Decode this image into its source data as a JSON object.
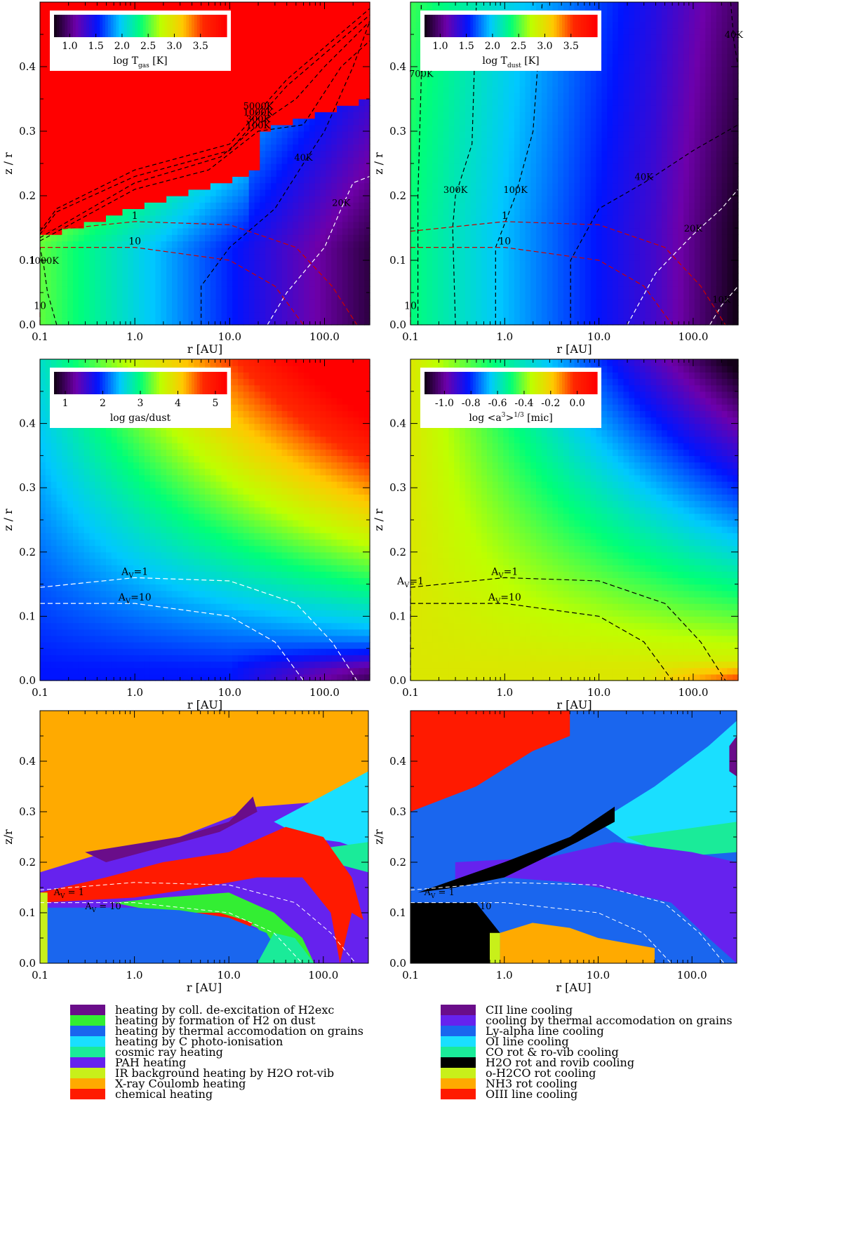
{
  "colors": {
    "hot": "#ff1a00",
    "contour_dark": "#000000",
    "contour_light": "#ffffff",
    "av_red": "#cc0000"
  },
  "chart_data": [
    {
      "type": "heatmap",
      "id": "tgas",
      "xlabel": "r [AU]",
      "ylabel": "z / r",
      "x_ticks": [
        "0.1",
        "1.0",
        "10.0",
        "100.0"
      ],
      "y_ticks": [
        "0.0",
        "0.1",
        "0.2",
        "0.3",
        "0.4"
      ],
      "xlim": [
        0.1,
        300
      ],
      "ylim": [
        0,
        0.5
      ],
      "x_scale": "log",
      "colorbar": {
        "ticks": [
          "1.0",
          "1.5",
          "2.0",
          "2.5",
          "3.0",
          "3.5"
        ],
        "label_main": "log T",
        "label_sub": "gas",
        "label_unit": " [K]",
        "range": [
          0.7,
          4.0
        ]
      },
      "temperature_contours": [
        {
          "label": "5000K",
          "level": "5000K",
          "points": [
            [
              0.1,
              0.145
            ],
            [
              0.15,
              0.18
            ],
            [
              1,
              0.24
            ],
            [
              10,
              0.28
            ],
            [
              20,
              0.33
            ],
            [
              40,
              0.38
            ],
            [
              100,
              0.43
            ],
            [
              300,
              0.49
            ]
          ]
        },
        {
          "label": "1000K",
          "level": "1000K",
          "points": [
            [
              0.1,
              0.14
            ],
            [
              0.15,
              0.175
            ],
            [
              1,
              0.23
            ],
            [
              10,
              0.27
            ],
            [
              20,
              0.32
            ],
            [
              40,
              0.37
            ],
            [
              100,
              0.42
            ],
            [
              300,
              0.48
            ]
          ]
        },
        {
          "label": "300K",
          "level": "300K",
          "points": [
            [
              0.1,
              0.135
            ],
            [
              1,
              0.22
            ],
            [
              8,
              0.26
            ],
            [
              20,
              0.31
            ],
            [
              50,
              0.35
            ],
            [
              100,
              0.4
            ],
            [
              300,
              0.47
            ]
          ]
        },
        {
          "label": "100K",
          "level": "100K",
          "points": [
            [
              0.1,
              0.13
            ],
            [
              1,
              0.21
            ],
            [
              6,
              0.24
            ],
            [
              20,
              0.3
            ],
            [
              60,
              0.31
            ],
            [
              150,
              0.4
            ],
            [
              300,
              0.44
            ]
          ]
        },
        {
          "label": "40K",
          "level": "40K",
          "points": [
            [
              5,
              0.0
            ],
            [
              5,
              0.06
            ],
            [
              10,
              0.12
            ],
            [
              30,
              0.18
            ],
            [
              60,
              0.25
            ],
            [
              100,
              0.3
            ],
            [
              200,
              0.4
            ],
            [
              300,
              0.47
            ]
          ]
        },
        {
          "label": "20K",
          "level": "20K",
          "points": [
            [
              25,
              0.0
            ],
            [
              40,
              0.05
            ],
            [
              100,
              0.12
            ],
            [
              150,
              0.18
            ],
            [
              200,
              0.22
            ],
            [
              300,
              0.23
            ]
          ]
        },
        {
          "label": "1000K",
          "level": "1000K",
          "points": [
            [
              0.15,
              0.0
            ],
            [
              0.12,
              0.05
            ],
            [
              0.11,
              0.09
            ],
            [
              0.1,
              0.12
            ]
          ]
        }
      ],
      "av_contours": [
        {
          "label": "1",
          "points": [
            [
              0.1,
              0.145
            ],
            [
              1,
              0.16
            ],
            [
              10,
              0.155
            ],
            [
              50,
              0.12
            ],
            [
              120,
              0.06
            ],
            [
              220,
              0.0
            ]
          ]
        },
        {
          "label": "10",
          "points": [
            [
              0.1,
              0.12
            ],
            [
              1,
              0.12
            ],
            [
              10,
              0.1
            ],
            [
              30,
              0.06
            ],
            [
              60,
              0.0
            ]
          ]
        },
        {
          "label": "10",
          "points": [
            [
              0.1,
              0.0
            ],
            [
              0.1,
              0.02
            ]
          ]
        }
      ]
    },
    {
      "type": "heatmap",
      "id": "tdust",
      "xlabel": "r [AU]",
      "ylabel": "z / r",
      "x_ticks": [
        "0.1",
        "1.0",
        "10.0",
        "100.0"
      ],
      "y_ticks": [
        "0.0",
        "0.1",
        "0.2",
        "0.3",
        "0.4"
      ],
      "xlim": [
        0.1,
        300
      ],
      "ylim": [
        0,
        0.5
      ],
      "x_scale": "log",
      "colorbar": {
        "ticks": [
          "1.0",
          "1.5",
          "2.0",
          "2.5",
          "3.0",
          "3.5"
        ],
        "label_main": "log T",
        "label_sub": "dust",
        "label_unit": " [K]",
        "range": [
          0.7,
          4.0
        ]
      },
      "temperature_contours": [
        {
          "label": "700K",
          "level": "700K",
          "points": [
            [
              0.12,
              0.0
            ],
            [
              0.12,
              0.2
            ],
            [
              0.13,
              0.38
            ],
            [
              0.13,
              0.5
            ]
          ]
        },
        {
          "label": "300K",
          "level": "300K",
          "points": [
            [
              0.3,
              0.0
            ],
            [
              0.28,
              0.15
            ],
            [
              0.3,
              0.2
            ],
            [
              0.45,
              0.28
            ],
            [
              0.5,
              0.5
            ]
          ]
        },
        {
          "label": "100K",
          "level": "100K",
          "points": [
            [
              0.8,
              0.0
            ],
            [
              0.8,
              0.12
            ],
            [
              1.3,
              0.2
            ],
            [
              2,
              0.3
            ],
            [
              2.5,
              0.5
            ]
          ]
        },
        {
          "label": "40K",
          "level": "40K",
          "points": [
            [
              5,
              0.0
            ],
            [
              5,
              0.1
            ],
            [
              10,
              0.18
            ],
            [
              30,
              0.22
            ],
            [
              100,
              0.27
            ],
            [
              300,
              0.31
            ]
          ]
        },
        {
          "label": "40K",
          "level": "40K",
          "points": [
            [
              250,
              0.5
            ],
            [
              270,
              0.44
            ],
            [
              300,
              0.4
            ]
          ]
        },
        {
          "label": "20K",
          "level": "20K",
          "points": [
            [
              20,
              0.0
            ],
            [
              40,
              0.08
            ],
            [
              100,
              0.14
            ],
            [
              200,
              0.18
            ],
            [
              300,
              0.21
            ]
          ]
        },
        {
          "label": "10K",
          "level": "10K",
          "points": [
            [
              150,
              0.0
            ],
            [
              200,
              0.03
            ],
            [
              300,
              0.06
            ]
          ]
        }
      ],
      "av_contours": [
        {
          "label": "1",
          "points": [
            [
              0.1,
              0.145
            ],
            [
              1,
              0.16
            ],
            [
              10,
              0.155
            ],
            [
              50,
              0.12
            ],
            [
              120,
              0.06
            ],
            [
              220,
              0.0
            ]
          ]
        },
        {
          "label": "10",
          "points": [
            [
              0.1,
              0.12
            ],
            [
              1,
              0.12
            ],
            [
              10,
              0.1
            ],
            [
              30,
              0.06
            ],
            [
              60,
              0.0
            ]
          ]
        },
        {
          "label": "10",
          "points": [
            [
              0.1,
              0.0
            ],
            [
              0.1,
              0.02
            ]
          ]
        }
      ]
    },
    {
      "type": "heatmap",
      "id": "gasdust",
      "xlabel": "r [AU]",
      "ylabel": "z / r",
      "x_ticks": [
        "0.1",
        "1.0",
        "10.0",
        "100.0"
      ],
      "y_ticks": [
        "0.0",
        "0.1",
        "0.2",
        "0.3",
        "0.4"
      ],
      "xlim": [
        0.1,
        300
      ],
      "ylim": [
        0,
        0.5
      ],
      "x_scale": "log",
      "colorbar": {
        "ticks": [
          "1",
          "2",
          "3",
          "4",
          "5"
        ],
        "label_main": "log gas/dust",
        "label_sub": "",
        "label_unit": "",
        "range": [
          0.7,
          5.3
        ]
      },
      "av_contours": [
        {
          "label": "A",
          "sub": "V",
          "suffix": "=1",
          "points": [
            [
              0.1,
              0.145
            ],
            [
              1,
              0.16
            ],
            [
              10,
              0.155
            ],
            [
              50,
              0.12
            ],
            [
              120,
              0.06
            ],
            [
              220,
              0.0
            ]
          ]
        },
        {
          "label": "A",
          "sub": "V",
          "suffix": "=10",
          "points": [
            [
              0.1,
              0.12
            ],
            [
              1,
              0.12
            ],
            [
              10,
              0.1
            ],
            [
              30,
              0.06
            ],
            [
              60,
              0.0
            ]
          ]
        }
      ]
    },
    {
      "type": "heatmap",
      "id": "grainsize",
      "xlabel": "r [AU]",
      "ylabel": "z / r",
      "x_ticks": [
        "0.1",
        "1.0",
        "10.0",
        "100.0"
      ],
      "y_ticks": [
        "0.0",
        "0.1",
        "0.2",
        "0.3",
        "0.4"
      ],
      "xlim": [
        0.1,
        300
      ],
      "ylim": [
        0,
        0.5
      ],
      "x_scale": "log",
      "colorbar": {
        "ticks": [
          "-1.0",
          "-0.8",
          "-0.6",
          "-0.4",
          "-0.2",
          "0.0"
        ],
        "label_main": "log <a",
        "label_sup": "3",
        "label_tail": ">",
        "label_sup2": "1/3",
        "label_unit": " [mic]",
        "range": [
          -1.15,
          0.15
        ]
      },
      "av_contours": [
        {
          "label": "A",
          "sub": "V",
          "suffix": "=1",
          "points": [
            [
              0.1,
              0.145
            ],
            [
              1,
              0.16
            ],
            [
              10,
              0.155
            ],
            [
              50,
              0.12
            ],
            [
              120,
              0.06
            ],
            [
              220,
              0.0
            ]
          ]
        },
        {
          "label": "A",
          "sub": "V",
          "suffix": "=10",
          "points": [
            [
              0.1,
              0.12
            ],
            [
              1,
              0.12
            ],
            [
              10,
              0.1
            ],
            [
              30,
              0.06
            ],
            [
              60,
              0.0
            ]
          ]
        },
        {
          "label": "A",
          "sub": "V",
          "suffix": "=1",
          "points": [
            [
              0.1,
              0.0
            ],
            [
              0.1,
              0.145
            ]
          ]
        }
      ]
    },
    {
      "type": "heatmap",
      "id": "heating",
      "xlabel": "r [AU]",
      "ylabel": "z/r",
      "x_ticks": [
        "0.1",
        "1.0",
        "10.0",
        "100.0"
      ],
      "y_ticks": [
        "0.0",
        "0.1",
        "0.2",
        "0.3",
        "0.4"
      ],
      "xlim": [
        0.1,
        300
      ],
      "ylim": [
        0,
        0.5
      ],
      "x_scale": "log",
      "av_labels": [
        {
          "text": "A",
          "sub": "V",
          "suffix": " = 1"
        },
        {
          "text": "A",
          "sub": "V",
          "suffix": " = 10"
        }
      ],
      "legend": [
        {
          "label": "heating by coll. de-excitation of H2exc",
          "color": "#6a0d8a"
        },
        {
          "label": "heating by formation of H2 on dust",
          "color": "#33ee33"
        },
        {
          "label": "heating by thermal accomodation on grains",
          "color": "#1a66ee"
        },
        {
          "label": "heating by C photo-ionisation",
          "color": "#1adfff"
        },
        {
          "label": "cosmic ray heating",
          "color": "#1aeb99"
        },
        {
          "label": "PAH heating",
          "color": "#6622ee"
        },
        {
          "label": "IR background heating by H2O rot-vib",
          "color": "#c8f01a"
        },
        {
          "label": "X-ray Coulomb heating",
          "color": "#ffaa00"
        },
        {
          "label": "chemical heating",
          "color": "#ff1a00"
        }
      ]
    },
    {
      "type": "heatmap",
      "id": "cooling",
      "xlabel": "r [AU]",
      "ylabel": "z/r",
      "x_ticks": [
        "0.1",
        "1.0",
        "10.0",
        "100.0"
      ],
      "y_ticks": [
        "0.0",
        "0.1",
        "0.2",
        "0.3",
        "0.4"
      ],
      "xlim": [
        0.1,
        300
      ],
      "ylim": [
        0,
        0.5
      ],
      "x_scale": "log",
      "av_labels": [
        {
          "text": "A",
          "sub": "V",
          "suffix": " = 1"
        },
        {
          "text": "A",
          "sub": "V",
          "suffix": " = 10"
        }
      ],
      "legend": [
        {
          "label": "CII line cooling",
          "color": "#6a0d8a"
        },
        {
          "label": "cooling by thermal accomodation on grains",
          "color": "#6622ee"
        },
        {
          "label": "Ly-alpha line cooling",
          "color": "#1a66ee"
        },
        {
          "label": "OI line cooling",
          "color": "#1adfff"
        },
        {
          "label": "CO rot & ro-vib cooling",
          "color": "#1aeb99"
        },
        {
          "label": "H2O rot and rovib cooling",
          "color": "#000000"
        },
        {
          "label": "o-H2CO rot cooling",
          "color": "#c8f01a"
        },
        {
          "label": "NH3 rot cooling",
          "color": "#ffaa00"
        },
        {
          "label": "OIII line cooling",
          "color": "#ff1a00"
        }
      ]
    }
  ]
}
